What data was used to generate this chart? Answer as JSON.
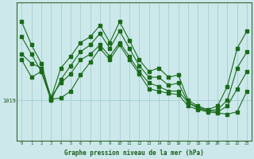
{
  "background_color": "#cce8ea",
  "plot_bg_color": "#cce8ea",
  "vline_color": "#99cccc",
  "line_color": "#1a6b1a",
  "xlabel": "Graphe pression niveau de la mer (hPa)",
  "ytick_value": 1019,
  "xlim": [
    -0.5,
    23.5
  ],
  "ylim": [
    1015.5,
    1027.5
  ],
  "tick_label_color": "#1a5c1a",
  "axis_label_color": "#1a5c1a",
  "x": [
    0,
    1,
    2,
    3,
    4,
    5,
    6,
    7,
    8,
    9,
    10,
    11,
    12,
    13,
    14,
    15,
    16,
    17,
    18,
    19,
    20,
    21,
    22,
    23
  ],
  "line1_y": [
    1025.8,
    1023.8,
    1022.2,
    1019.1,
    1019.2,
    1019.8,
    1021.2,
    1022.3,
    1023.5,
    1022.5,
    1023.8,
    1022.5,
    1021.3,
    1020.0,
    1019.8,
    1019.6,
    1019.5,
    1018.5,
    1018.2,
    1018.0,
    1017.9,
    1017.8,
    1018.0,
    1019.8
  ],
  "line2_y": [
    1022.5,
    1021.0,
    1021.5,
    1019.2,
    1021.8,
    1022.8,
    1024.0,
    1024.5,
    1025.5,
    1024.0,
    1025.8,
    1024.2,
    1022.5,
    1021.5,
    1021.8,
    1021.0,
    1021.2,
    1019.0,
    1018.5,
    1018.2,
    1018.5,
    1020.2,
    1023.5,
    1025.0
  ],
  "line3_y": [
    1023.0,
    1022.2,
    1021.8,
    1019.3,
    1020.5,
    1021.3,
    1022.5,
    1023.0,
    1023.8,
    1022.8,
    1024.0,
    1022.8,
    1021.5,
    1020.5,
    1020.2,
    1019.8,
    1019.8,
    1018.8,
    1018.4,
    1018.1,
    1018.0,
    1018.5,
    1020.0,
    1021.5
  ],
  "line4_y": [
    1024.5,
    1023.0,
    1021.5,
    1019.0,
    1020.8,
    1022.0,
    1023.2,
    1023.8,
    1024.8,
    1023.5,
    1025.0,
    1023.5,
    1022.0,
    1021.0,
    1021.0,
    1020.3,
    1020.5,
    1018.8,
    1018.3,
    1018.1,
    1018.2,
    1019.0,
    1021.8,
    1023.2
  ]
}
